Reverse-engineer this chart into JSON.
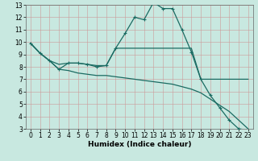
{
  "xlabel": "Humidex (Indice chaleur)",
  "bg_color": "#c8e8e0",
  "grid_color": "#cc9999",
  "line_color": "#1a6b62",
  "xlim": [
    -0.5,
    23.5
  ],
  "ylim": [
    3,
    13
  ],
  "xticks": [
    0,
    1,
    2,
    3,
    4,
    5,
    6,
    7,
    8,
    9,
    10,
    11,
    12,
    13,
    14,
    15,
    16,
    17,
    18,
    19,
    20,
    21,
    22,
    23
  ],
  "yticks": [
    3,
    4,
    5,
    6,
    7,
    8,
    9,
    10,
    11,
    12,
    13
  ],
  "line1_x": [
    0,
    1,
    2,
    3,
    4,
    5,
    6,
    7,
    8,
    9,
    10,
    11,
    12,
    13,
    14,
    15,
    16,
    17,
    18,
    19,
    20,
    21,
    22,
    23
  ],
  "line1_y": [
    9.9,
    9.1,
    8.5,
    7.8,
    8.3,
    8.3,
    8.2,
    8.0,
    8.1,
    9.5,
    10.7,
    12.0,
    11.8,
    13.2,
    12.7,
    12.7,
    11.0,
    9.2,
    7.0,
    5.7,
    4.7,
    3.7,
    3.0,
    2.9
  ],
  "line2_x": [
    0,
    1,
    2,
    3,
    4,
    5,
    6,
    7,
    8,
    9,
    10,
    11,
    12,
    13,
    14,
    15,
    16,
    17,
    18,
    19,
    20,
    21,
    22,
    23
  ],
  "line2_y": [
    9.9,
    9.1,
    8.5,
    8.2,
    8.3,
    8.3,
    8.2,
    8.1,
    8.1,
    9.5,
    9.5,
    9.5,
    9.5,
    9.5,
    9.5,
    9.5,
    9.5,
    9.5,
    7.0,
    7.0,
    7.0,
    7.0,
    7.0,
    7.0
  ],
  "line3_x": [
    0,
    1,
    2,
    3,
    4,
    5,
    6,
    7,
    8,
    9,
    10,
    11,
    12,
    13,
    14,
    15,
    16,
    17,
    18,
    19,
    20,
    21,
    22,
    23
  ],
  "line3_y": [
    9.9,
    9.1,
    8.5,
    7.8,
    7.7,
    7.5,
    7.4,
    7.3,
    7.3,
    7.2,
    7.1,
    7.0,
    6.9,
    6.8,
    6.7,
    6.6,
    6.4,
    6.2,
    5.9,
    5.4,
    4.9,
    4.4,
    3.7,
    3.0
  ],
  "tick_fontsize": 5.5,
  "xlabel_fontsize": 6.5
}
